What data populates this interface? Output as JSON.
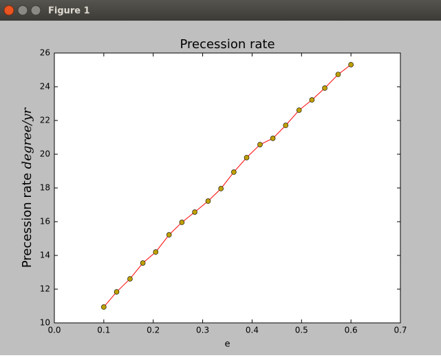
{
  "window": {
    "title": "Figure 1"
  },
  "chart_data": {
    "type": "line",
    "title": "Precession rate",
    "xlabel": "e",
    "ylabel": "Precession rate",
    "ylabel_unit": "degree/yr",
    "x": [
      0.1,
      0.126,
      0.153,
      0.179,
      0.205,
      0.232,
      0.258,
      0.284,
      0.311,
      0.337,
      0.363,
      0.389,
      0.416,
      0.442,
      0.468,
      0.495,
      0.521,
      0.547,
      0.574,
      0.6
    ],
    "series": [
      {
        "color": "#ff0000",
        "marker_color": "#bfa000",
        "values": [
          10.94,
          11.84,
          12.61,
          13.55,
          14.2,
          15.22,
          15.96,
          16.57,
          17.22,
          17.96,
          18.94,
          19.8,
          20.57,
          20.94,
          21.71,
          22.61,
          23.22,
          23.92,
          24.73,
          25.31
        ]
      }
    ],
    "xlim": [
      0,
      0.7
    ],
    "ylim": [
      10,
      26
    ],
    "xticks": [
      {
        "value": 0,
        "label": "0.0"
      },
      0.1,
      0.2,
      0.3,
      0.4,
      0.5,
      0.6,
      0.7
    ],
    "yticks": [
      10,
      12,
      14,
      16,
      18,
      20,
      22,
      24,
      26
    ]
  }
}
